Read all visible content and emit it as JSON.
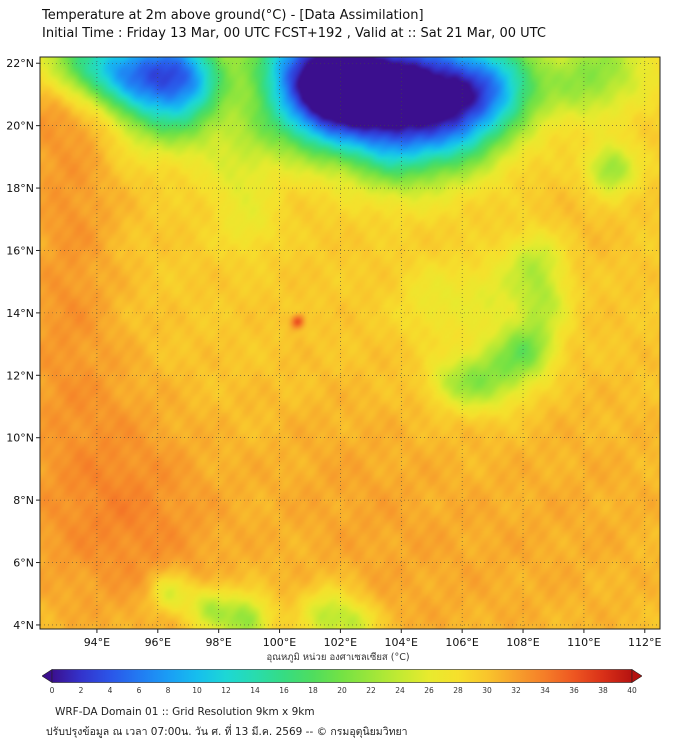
{
  "header": {
    "title": "Temperature at 2m above ground(°C) - [Data Assimilation]",
    "subtitle": "Initial Time : Friday 13 Mar, 00 UTC FCST+192 , Valid at :: Sat 21 Mar, 00 UTC"
  },
  "map": {
    "lon_min": 92.13,
    "lon_max": 112.5,
    "lat_min": 3.87,
    "lat_max": 22.2,
    "lon_ticks": [
      94,
      96,
      98,
      100,
      102,
      104,
      106,
      108,
      110,
      112
    ],
    "lon_tick_labels": [
      "94°E",
      "96°E",
      "98°E",
      "100°E",
      "102°E",
      "104°E",
      "106°E",
      "108°E",
      "110°E",
      "112°E"
    ],
    "lat_ticks": [
      4,
      6,
      8,
      10,
      12,
      14,
      16,
      18,
      20,
      22
    ],
    "lat_tick_labels": [
      "4°N",
      "6°N",
      "8°N",
      "10°N",
      "12°N",
      "14°N",
      "16°N",
      "18°N",
      "20°N",
      "22°N"
    ]
  },
  "field": {
    "base_temp": 29.2,
    "south_warm_gradient_per_deg": 0.05,
    "blobs": [
      [
        95.6,
        21.2,
        1.1,
        -13
      ],
      [
        96.4,
        22.0,
        1.0,
        -12
      ],
      [
        94.6,
        21.9,
        0.8,
        -8
      ],
      [
        97.3,
        21.6,
        0.8,
        -7
      ],
      [
        100.6,
        21.9,
        1.2,
        -14
      ],
      [
        102.0,
        21.6,
        1.4,
        -16
      ],
      [
        103.4,
        21.3,
        1.3,
        -13
      ],
      [
        104.9,
        21.6,
        1.3,
        -12
      ],
      [
        106.3,
        21.2,
        1.2,
        -12
      ],
      [
        107.5,
        21.3,
        1.0,
        -9
      ],
      [
        101.3,
        20.3,
        1.0,
        -9
      ],
      [
        103.0,
        20.2,
        1.1,
        -7
      ],
      [
        104.7,
        19.7,
        1.2,
        -8
      ],
      [
        106.0,
        19.9,
        1.0,
        -7
      ],
      [
        93.3,
        22.0,
        0.9,
        -9
      ],
      [
        110.8,
        21.9,
        1.0,
        -6
      ],
      [
        109.8,
        21.3,
        0.8,
        -4
      ],
      [
        110.9,
        18.6,
        0.55,
        -8
      ],
      [
        108.4,
        15.6,
        0.7,
        -6
      ],
      [
        108.7,
        14.3,
        0.6,
        -5
      ],
      [
        108.2,
        12.9,
        0.65,
        -8
      ],
      [
        107.2,
        12.1,
        0.8,
        -7
      ],
      [
        106.2,
        11.7,
        0.6,
        -5
      ],
      [
        105.4,
        11.8,
        0.5,
        -3
      ],
      [
        98.9,
        4.15,
        0.55,
        -9
      ],
      [
        97.7,
        4.5,
        0.5,
        -7
      ],
      [
        96.4,
        5.0,
        0.45,
        -6
      ],
      [
        101.6,
        4.3,
        0.6,
        -7
      ],
      [
        102.6,
        4.05,
        0.45,
        -5
      ],
      [
        98.6,
        18.4,
        0.8,
        -3
      ],
      [
        99.0,
        16.8,
        0.7,
        -2.5
      ],
      [
        105.2,
        14.3,
        0.9,
        -3
      ],
      [
        107.0,
        14.6,
        0.7,
        -3
      ],
      [
        103.7,
        19.0,
        0.9,
        -4
      ],
      [
        97.0,
        20.3,
        0.9,
        -6
      ],
      [
        99.3,
        19.8,
        0.8,
        -3.5
      ],
      [
        92.8,
        19.5,
        1.3,
        2.6
      ],
      [
        93.2,
        17.0,
        1.2,
        2.4
      ],
      [
        93.0,
        14.5,
        1.2,
        2.2
      ],
      [
        93.0,
        12.0,
        1.5,
        1.8
      ],
      [
        94.5,
        9.0,
        2.2,
        1.6
      ],
      [
        96.0,
        6.5,
        2.0,
        1.3
      ],
      [
        92.6,
        21.0,
        0.7,
        3.0
      ],
      [
        94.0,
        20.2,
        0.6,
        2.5
      ],
      [
        101.8,
        9.0,
        2.2,
        1.2
      ],
      [
        104.0,
        6.0,
        2.5,
        1.0
      ],
      [
        108.5,
        6.5,
        3.0,
        0.8
      ],
      [
        111.0,
        9.0,
        2.5,
        0.7
      ],
      [
        93.5,
        7.5,
        2.5,
        1.5
      ],
      [
        100.6,
        13.72,
        0.16,
        7
      ],
      [
        109.8,
        16.5,
        1.2,
        0.8
      ]
    ]
  },
  "colorbar": {
    "label": "อุณหภูมิ หน่วย องศาเซลเซียส (°C)",
    "min": 0,
    "max": 40,
    "step": 2,
    "tick_labels": [
      "0",
      "2",
      "4",
      "6",
      "8",
      "10",
      "12",
      "14",
      "16",
      "18",
      "20",
      "22",
      "24",
      "26",
      "28",
      "30",
      "32",
      "34",
      "36",
      "38",
      "40"
    ],
    "stops": [
      "#3b0f8e",
      "#3333cc",
      "#2b55e8",
      "#227af2",
      "#1a9df5",
      "#16beee",
      "#1dd7d5",
      "#28dcae",
      "#36dc82",
      "#4fdd5e",
      "#74e244",
      "#9ce63a",
      "#c3ea32",
      "#e8ea2e",
      "#f6e02c",
      "#f9c52c",
      "#f7a02c",
      "#f57d28",
      "#ee5621",
      "#d93018",
      "#b51210"
    ]
  },
  "footer": {
    "line1": "WRF-DA Domain 01 :: Grid Resolution 9km x 9km",
    "line2": "ปรับปรุงข้อมูล ณ เวลา 07:00น. วัน ศ. ที่ 13 มี.ค. 2569 -- © กรมอุตุนิยมวิทยา"
  }
}
